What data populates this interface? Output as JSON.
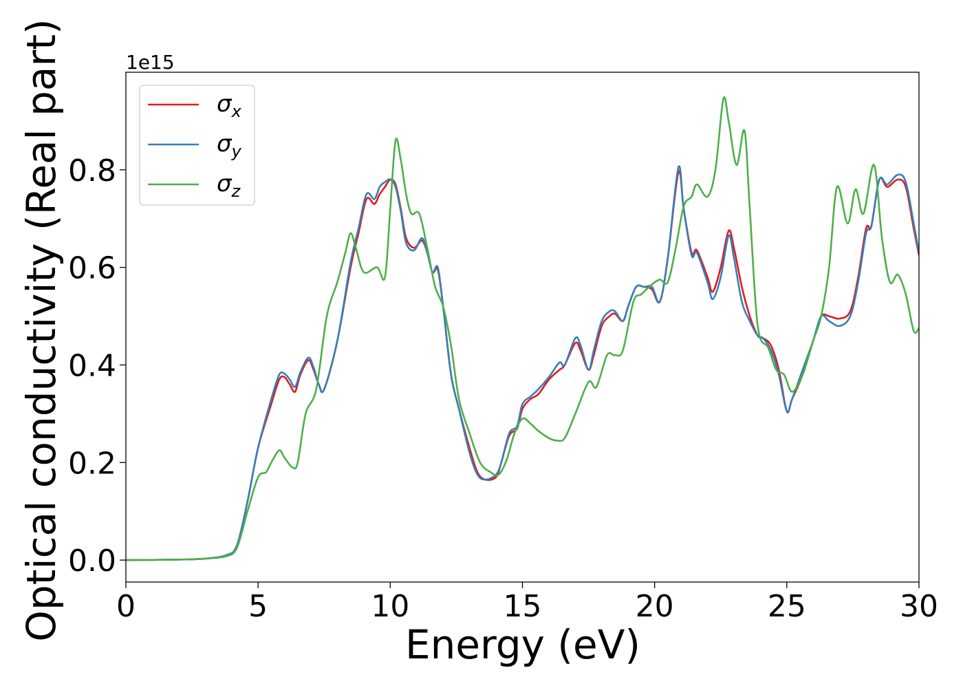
{
  "chart_data": {
    "type": "line",
    "xlabel": "Energy (eV)",
    "ylabel": "Optical conductivity (Real part)",
    "y_offset_label": "1e15",
    "xlim": [
      0,
      30
    ],
    "ylim": [
      -0.045,
      1.0
    ],
    "y_scale": 1000000000000000.0,
    "x_ticks": [
      0,
      5,
      10,
      15,
      20,
      25,
      30
    ],
    "x_tick_labels": [
      "0",
      "5",
      "10",
      "15",
      "20",
      "25",
      "30"
    ],
    "y_ticks": [
      0.0,
      0.2,
      0.4,
      0.6,
      0.8
    ],
    "y_tick_labels": [
      "0.0",
      "0.2",
      "0.4",
      "0.6",
      "0.8"
    ],
    "grid": false,
    "legend_position": "top-left",
    "series": [
      {
        "name": "σ",
        "subscript": "x",
        "color": "#e41a1c",
        "points": [
          [
            0,
            0
          ],
          [
            2,
            0.001
          ],
          [
            3,
            0.003
          ],
          [
            3.8,
            0.01
          ],
          [
            4.2,
            0.03
          ],
          [
            4.6,
            0.12
          ],
          [
            5,
            0.23
          ],
          [
            5.5,
            0.32
          ],
          [
            5.8,
            0.37
          ],
          [
            6,
            0.375
          ],
          [
            6.2,
            0.36
          ],
          [
            6.4,
            0.345
          ],
          [
            6.6,
            0.38
          ],
          [
            6.9,
            0.41
          ],
          [
            7.1,
            0.39
          ],
          [
            7.3,
            0.36
          ],
          [
            7.5,
            0.35
          ],
          [
            8,
            0.45
          ],
          [
            8.5,
            0.6
          ],
          [
            8.8,
            0.67
          ],
          [
            9.1,
            0.74
          ],
          [
            9.4,
            0.73
          ],
          [
            9.6,
            0.75
          ],
          [
            9.8,
            0.765
          ],
          [
            10,
            0.78
          ],
          [
            10.2,
            0.77
          ],
          [
            10.4,
            0.72
          ],
          [
            10.6,
            0.66
          ],
          [
            10.9,
            0.64
          ],
          [
            11.2,
            0.655
          ],
          [
            11.4,
            0.63
          ],
          [
            11.6,
            0.59
          ],
          [
            11.8,
            0.595
          ],
          [
            12,
            0.52
          ],
          [
            12.3,
            0.38
          ],
          [
            12.6,
            0.31
          ],
          [
            13,
            0.23
          ],
          [
            13.3,
            0.18
          ],
          [
            13.6,
            0.165
          ],
          [
            14,
            0.17
          ],
          [
            14.2,
            0.2
          ],
          [
            14.5,
            0.255
          ],
          [
            14.8,
            0.27
          ],
          [
            15,
            0.31
          ],
          [
            15.3,
            0.33
          ],
          [
            15.6,
            0.34
          ],
          [
            16,
            0.37
          ],
          [
            16.4,
            0.39
          ],
          [
            16.6,
            0.4
          ],
          [
            17,
            0.445
          ],
          [
            17.2,
            0.43
          ],
          [
            17.5,
            0.39
          ],
          [
            17.7,
            0.42
          ],
          [
            18,
            0.48
          ],
          [
            18.3,
            0.5
          ],
          [
            18.5,
            0.505
          ],
          [
            18.8,
            0.49
          ],
          [
            19,
            0.52
          ],
          [
            19.3,
            0.56
          ],
          [
            19.6,
            0.56
          ],
          [
            19.9,
            0.555
          ],
          [
            20.2,
            0.53
          ],
          [
            20.5,
            0.62
          ],
          [
            20.9,
            0.795
          ],
          [
            21.1,
            0.72
          ],
          [
            21.4,
            0.63
          ],
          [
            21.6,
            0.635
          ],
          [
            22,
            0.58
          ],
          [
            22.2,
            0.55
          ],
          [
            22.5,
            0.6
          ],
          [
            22.8,
            0.675
          ],
          [
            23,
            0.64
          ],
          [
            23.3,
            0.56
          ],
          [
            23.6,
            0.5
          ],
          [
            23.9,
            0.46
          ],
          [
            24.1,
            0.455
          ],
          [
            24.4,
            0.44
          ],
          [
            24.7,
            0.39
          ],
          [
            25,
            0.305
          ],
          [
            25.2,
            0.33
          ],
          [
            25.6,
            0.38
          ],
          [
            26,
            0.45
          ],
          [
            26.3,
            0.5
          ],
          [
            26.6,
            0.5
          ],
          [
            27,
            0.495
          ],
          [
            27.4,
            0.51
          ],
          [
            27.7,
            0.58
          ],
          [
            28,
            0.68
          ],
          [
            28.2,
            0.685
          ],
          [
            28.5,
            0.78
          ],
          [
            28.8,
            0.765
          ],
          [
            29.2,
            0.78
          ],
          [
            29.5,
            0.765
          ],
          [
            29.8,
            0.68
          ],
          [
            30,
            0.625
          ]
        ]
      },
      {
        "name": "σ",
        "subscript": "y",
        "color": "#377eb8",
        "points": [
          [
            0,
            0
          ],
          [
            2,
            0.001
          ],
          [
            3,
            0.003
          ],
          [
            3.8,
            0.01
          ],
          [
            4.2,
            0.03
          ],
          [
            4.6,
            0.12
          ],
          [
            5,
            0.23
          ],
          [
            5.5,
            0.33
          ],
          [
            5.8,
            0.38
          ],
          [
            6,
            0.382
          ],
          [
            6.2,
            0.37
          ],
          [
            6.4,
            0.355
          ],
          [
            6.6,
            0.385
          ],
          [
            6.9,
            0.415
          ],
          [
            7.1,
            0.395
          ],
          [
            7.3,
            0.36
          ],
          [
            7.5,
            0.35
          ],
          [
            8,
            0.45
          ],
          [
            8.5,
            0.61
          ],
          [
            8.8,
            0.68
          ],
          [
            9.1,
            0.75
          ],
          [
            9.4,
            0.74
          ],
          [
            9.6,
            0.765
          ],
          [
            9.8,
            0.775
          ],
          [
            10,
            0.78
          ],
          [
            10.2,
            0.765
          ],
          [
            10.4,
            0.715
          ],
          [
            10.6,
            0.65
          ],
          [
            10.9,
            0.635
          ],
          [
            11.2,
            0.66
          ],
          [
            11.4,
            0.63
          ],
          [
            11.6,
            0.59
          ],
          [
            11.8,
            0.6
          ],
          [
            12,
            0.52
          ],
          [
            12.3,
            0.38
          ],
          [
            12.6,
            0.31
          ],
          [
            13,
            0.22
          ],
          [
            13.3,
            0.175
          ],
          [
            13.6,
            0.165
          ],
          [
            14,
            0.175
          ],
          [
            14.2,
            0.2
          ],
          [
            14.5,
            0.26
          ],
          [
            14.8,
            0.275
          ],
          [
            15,
            0.32
          ],
          [
            15.3,
            0.335
          ],
          [
            15.6,
            0.35
          ],
          [
            16,
            0.375
          ],
          [
            16.4,
            0.405
          ],
          [
            16.6,
            0.4
          ],
          [
            17,
            0.455
          ],
          [
            17.2,
            0.44
          ],
          [
            17.5,
            0.39
          ],
          [
            17.7,
            0.43
          ],
          [
            18,
            0.49
          ],
          [
            18.3,
            0.51
          ],
          [
            18.5,
            0.51
          ],
          [
            18.8,
            0.49
          ],
          [
            19,
            0.52
          ],
          [
            19.3,
            0.56
          ],
          [
            19.6,
            0.56
          ],
          [
            19.9,
            0.56
          ],
          [
            20.2,
            0.53
          ],
          [
            20.5,
            0.62
          ],
          [
            20.9,
            0.805
          ],
          [
            21.1,
            0.72
          ],
          [
            21.4,
            0.625
          ],
          [
            21.6,
            0.63
          ],
          [
            22,
            0.57
          ],
          [
            22.2,
            0.535
          ],
          [
            22.5,
            0.58
          ],
          [
            22.8,
            0.665
          ],
          [
            23,
            0.62
          ],
          [
            23.3,
            0.53
          ],
          [
            23.6,
            0.49
          ],
          [
            23.9,
            0.46
          ],
          [
            24.1,
            0.455
          ],
          [
            24.4,
            0.43
          ],
          [
            24.7,
            0.38
          ],
          [
            25,
            0.305
          ],
          [
            25.2,
            0.33
          ],
          [
            25.6,
            0.39
          ],
          [
            26,
            0.45
          ],
          [
            26.3,
            0.5
          ],
          [
            26.6,
            0.49
          ],
          [
            27,
            0.48
          ],
          [
            27.4,
            0.5
          ],
          [
            27.7,
            0.57
          ],
          [
            28,
            0.67
          ],
          [
            28.2,
            0.685
          ],
          [
            28.5,
            0.78
          ],
          [
            28.8,
            0.77
          ],
          [
            29.2,
            0.79
          ],
          [
            29.5,
            0.775
          ],
          [
            29.8,
            0.69
          ],
          [
            30,
            0.63
          ]
        ]
      },
      {
        "name": "σ",
        "subscript": "z",
        "color": "#4daf4a",
        "points": [
          [
            0,
            0
          ],
          [
            2,
            0.001
          ],
          [
            3,
            0.003
          ],
          [
            3.8,
            0.008
          ],
          [
            4.2,
            0.025
          ],
          [
            4.6,
            0.1
          ],
          [
            5,
            0.17
          ],
          [
            5.3,
            0.18
          ],
          [
            5.5,
            0.2
          ],
          [
            5.8,
            0.225
          ],
          [
            6,
            0.21
          ],
          [
            6.3,
            0.19
          ],
          [
            6.5,
            0.2
          ],
          [
            6.8,
            0.3
          ],
          [
            7.2,
            0.35
          ],
          [
            7.6,
            0.5
          ],
          [
            8,
            0.57
          ],
          [
            8.3,
            0.63
          ],
          [
            8.5,
            0.67
          ],
          [
            8.7,
            0.64
          ],
          [
            9,
            0.59
          ],
          [
            9.5,
            0.6
          ],
          [
            9.8,
            0.58
          ],
          [
            10,
            0.72
          ],
          [
            10.2,
            0.86
          ],
          [
            10.4,
            0.82
          ],
          [
            10.6,
            0.75
          ],
          [
            10.8,
            0.71
          ],
          [
            11.1,
            0.71
          ],
          [
            11.4,
            0.64
          ],
          [
            11.7,
            0.56
          ],
          [
            12,
            0.52
          ],
          [
            12.3,
            0.44
          ],
          [
            12.6,
            0.33
          ],
          [
            13,
            0.26
          ],
          [
            13.4,
            0.2
          ],
          [
            13.8,
            0.18
          ],
          [
            14.1,
            0.175
          ],
          [
            14.4,
            0.205
          ],
          [
            14.7,
            0.26
          ],
          [
            15,
            0.29
          ],
          [
            15.3,
            0.28
          ],
          [
            15.6,
            0.265
          ],
          [
            16,
            0.25
          ],
          [
            16.3,
            0.245
          ],
          [
            16.6,
            0.25
          ],
          [
            17,
            0.3
          ],
          [
            17.5,
            0.365
          ],
          [
            17.8,
            0.355
          ],
          [
            18.2,
            0.42
          ],
          [
            18.5,
            0.42
          ],
          [
            18.8,
            0.43
          ],
          [
            19.2,
            0.53
          ],
          [
            19.5,
            0.545
          ],
          [
            19.9,
            0.565
          ],
          [
            20.2,
            0.575
          ],
          [
            20.5,
            0.57
          ],
          [
            20.8,
            0.64
          ],
          [
            21.1,
            0.725
          ],
          [
            21.4,
            0.745
          ],
          [
            21.6,
            0.77
          ],
          [
            22,
            0.745
          ],
          [
            22.3,
            0.8
          ],
          [
            22.6,
            0.945
          ],
          [
            22.8,
            0.9
          ],
          [
            23.1,
            0.81
          ],
          [
            23.4,
            0.88
          ],
          [
            23.6,
            0.72
          ],
          [
            23.9,
            0.48
          ],
          [
            24.3,
            0.435
          ],
          [
            24.6,
            0.39
          ],
          [
            24.9,
            0.38
          ],
          [
            25.2,
            0.345
          ],
          [
            25.6,
            0.38
          ],
          [
            26,
            0.45
          ],
          [
            26.3,
            0.5
          ],
          [
            26.6,
            0.6
          ],
          [
            26.9,
            0.765
          ],
          [
            27.3,
            0.69
          ],
          [
            27.6,
            0.76
          ],
          [
            27.9,
            0.71
          ],
          [
            28.3,
            0.81
          ],
          [
            28.6,
            0.66
          ],
          [
            28.9,
            0.57
          ],
          [
            29.2,
            0.585
          ],
          [
            29.5,
            0.545
          ],
          [
            29.8,
            0.47
          ],
          [
            30,
            0.475
          ]
        ]
      }
    ]
  }
}
